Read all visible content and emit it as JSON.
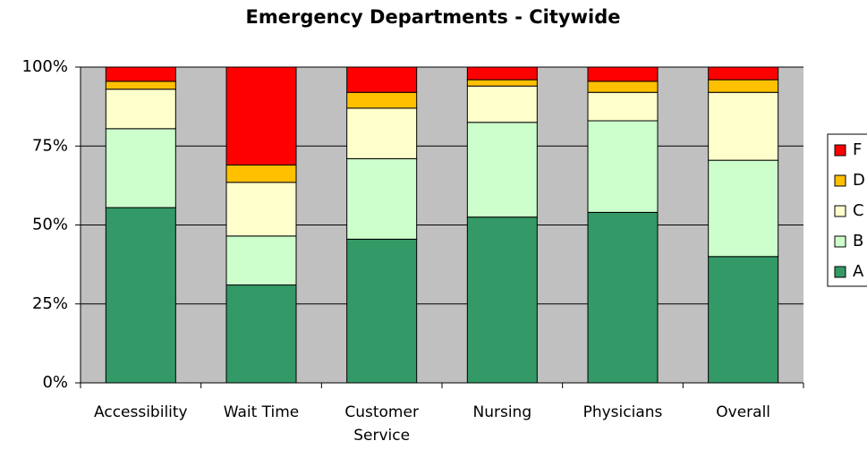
{
  "chart_data": {
    "type": "stacked_bar",
    "title": "Emergency Departments - Citywide",
    "categories": [
      "Accessibility",
      "Wait Time",
      "Customer Service",
      "Nursing",
      "Physicians",
      "Overall"
    ],
    "series": [
      {
        "name": "A",
        "color": "#339966",
        "values": [
          55.5,
          31,
          45.5,
          52.5,
          54,
          40
        ]
      },
      {
        "name": "B",
        "color": "#ccffcc",
        "values": [
          25,
          15.5,
          25.5,
          30,
          29,
          30.5
        ]
      },
      {
        "name": "C",
        "color": "#ffffcc",
        "values": [
          12.5,
          17,
          16,
          11.5,
          9,
          21.5
        ]
      },
      {
        "name": "D",
        "color": "#ffc000",
        "values": [
          2.5,
          5.5,
          5,
          2,
          3.5,
          4
        ]
      },
      {
        "name": "F",
        "color": "#ff0000",
        "values": [
          4.5,
          31,
          8,
          4,
          4.5,
          4
        ]
      }
    ],
    "ylim": [
      0,
      100
    ],
    "yticks": [
      {
        "value": 0,
        "label": "0%"
      },
      {
        "value": 25,
        "label": "25%"
      },
      {
        "value": 50,
        "label": "50%"
      },
      {
        "value": 75,
        "label": "75%"
      },
      {
        "value": 100,
        "label": "100%"
      }
    ],
    "grid": true,
    "plot_background": "#c0c0c0",
    "legend": "right"
  }
}
